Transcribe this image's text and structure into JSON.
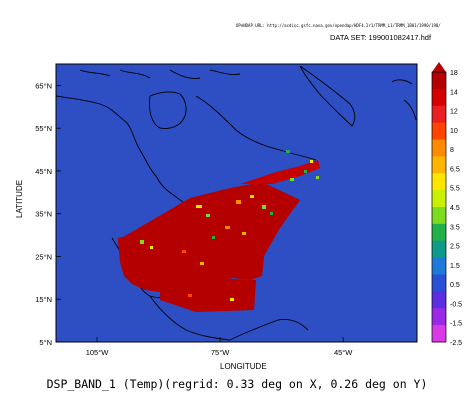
{
  "header": {
    "source_line": "OPeNDAP URL: http://acdisc.gsfc.nasa.gov/opendap/HDF4.2r1/TRMM_L1/TRMM_1B01/1990/198/",
    "dataset_label": "DATA SET: 199001082417.hdf"
  },
  "chart_data": {
    "type": "heatmap",
    "title": "DSP_BAND_1 (Temp)(regrid: 0.33 deg on X, 0.26 deg on Y)",
    "xlabel": "LONGITUDE",
    "ylabel": "LATITUDE",
    "xlim": [
      -115,
      -27
    ],
    "ylim": [
      5,
      70
    ],
    "x_ticks": [
      {
        "value": -105,
        "label": "105°W"
      },
      {
        "value": -75,
        "label": "75°W"
      },
      {
        "value": -45,
        "label": "45°W"
      }
    ],
    "y_ticks": [
      {
        "value": 15,
        "label": "15°N"
      },
      {
        "value": 25,
        "label": "25°N"
      },
      {
        "value": 35,
        "label": "35°N"
      },
      {
        "value": 45,
        "label": "45°N"
      },
      {
        "value": 55,
        "label": "55°N"
      },
      {
        "value": 65,
        "label": "65°N"
      },
      {
        "value": 5,
        "label": "5°N"
      }
    ],
    "colorbar": {
      "labels": [
        "18",
        "14",
        "12",
        "10",
        "8",
        "6.5",
        "5.5",
        "4.5",
        "3.5",
        "2.5",
        "1.5",
        "0.5",
        "-0.5",
        "-1.5",
        "-2.5"
      ],
      "colors": [
        "#b30000",
        "#d40000",
        "#e82020",
        "#ff4500",
        "#ff8c00",
        "#ffb400",
        "#ffe600",
        "#c8f000",
        "#7ddc1e",
        "#22b04a",
        "#0d9a8a",
        "#1e7ad8",
        "#2a50d8",
        "#5a2ee0",
        "#9a28e6",
        "#d93ae6"
      ]
    },
    "colors": {
      "background": "#2e4fc4",
      "land": "#2e4fc4",
      "coast": "#000000",
      "swath": "#b50000"
    }
  }
}
